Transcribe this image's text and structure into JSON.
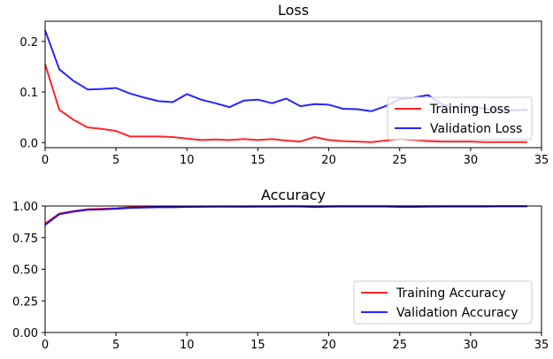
{
  "chart_data": [
    {
      "type": "line",
      "title": "Loss",
      "xlabel": "",
      "ylabel": "",
      "xlim": [
        0,
        35
      ],
      "ylim": [
        -0.01,
        0.24
      ],
      "xticks": [
        0,
        5,
        10,
        15,
        20,
        25,
        30,
        35
      ],
      "xtick_labels": [
        "0",
        "5",
        "10",
        "15",
        "20",
        "25",
        "30",
        "35"
      ],
      "yticks": [
        0.0,
        0.1,
        0.2
      ],
      "ytick_labels": [
        "0.0",
        "0.1",
        "0.2"
      ],
      "grid": false,
      "legend_position": "center-right",
      "x": [
        0,
        1,
        2,
        3,
        4,
        5,
        6,
        7,
        8,
        9,
        10,
        11,
        12,
        13,
        14,
        15,
        16,
        17,
        18,
        19,
        20,
        21,
        22,
        23,
        24,
        25,
        26,
        27,
        28,
        29,
        30,
        31,
        32,
        33,
        34
      ],
      "series": [
        {
          "name": "Training Loss",
          "color": "#ff0000",
          "values": [
            0.155,
            0.065,
            0.045,
            0.03,
            0.027,
            0.023,
            0.012,
            0.012,
            0.012,
            0.011,
            0.008,
            0.005,
            0.006,
            0.005,
            0.007,
            0.005,
            0.007,
            0.004,
            0.002,
            0.011,
            0.005,
            0.003,
            0.002,
            0.001,
            0.004,
            0.007,
            0.005,
            0.003,
            0.002,
            0.002,
            0.002,
            0.001,
            0.001,
            0.001,
            0.001
          ]
        },
        {
          "name": "Validation Loss",
          "color": "#0000ff",
          "values": [
            0.222,
            0.145,
            0.122,
            0.105,
            0.106,
            0.108,
            0.097,
            0.089,
            0.082,
            0.08,
            0.096,
            0.085,
            0.078,
            0.07,
            0.083,
            0.085,
            0.078,
            0.087,
            0.072,
            0.076,
            0.075,
            0.067,
            0.066,
            0.062,
            0.072,
            0.086,
            0.089,
            0.094,
            0.075,
            0.07,
            0.072,
            0.067,
            0.064,
            0.064,
            0.065
          ]
        }
      ]
    },
    {
      "type": "line",
      "title": "Accuracy",
      "xlabel": "",
      "ylabel": "",
      "xlim": [
        0,
        35
      ],
      "ylim": [
        0.0,
        1.0
      ],
      "xticks": [
        0,
        5,
        10,
        15,
        20,
        25,
        30,
        35
      ],
      "xtick_labels": [
        "0",
        "5",
        "10",
        "15",
        "20",
        "25",
        "30",
        "35"
      ],
      "yticks": [
        0.0,
        0.25,
        0.5,
        0.75,
        1.0
      ],
      "ytick_labels": [
        "0.00",
        "0.25",
        "0.50",
        "0.75",
        "1.00"
      ],
      "grid": false,
      "legend_position": "lower-right",
      "x": [
        0,
        1,
        2,
        3,
        4,
        5,
        6,
        7,
        8,
        9,
        10,
        11,
        12,
        13,
        14,
        15,
        16,
        17,
        18,
        19,
        20,
        21,
        22,
        23,
        24,
        25,
        26,
        27,
        28,
        29,
        30,
        31,
        32,
        33,
        34
      ],
      "series": [
        {
          "name": "Training Accuracy",
          "color": "#ff0000",
          "values": [
            0.86,
            0.94,
            0.96,
            0.975,
            0.978,
            0.982,
            0.99,
            0.992,
            0.993,
            0.993,
            0.995,
            0.996,
            0.997,
            0.997,
            0.997,
            0.998,
            0.998,
            0.999,
            0.999,
            0.997,
            0.998,
            0.999,
            0.999,
            0.999,
            0.999,
            0.998,
            0.998,
            0.999,
            0.999,
            0.999,
            0.999,
            0.999,
            0.999,
            0.999,
            0.999
          ]
        },
        {
          "name": "Validation Accuracy",
          "color": "#0000ff",
          "values": [
            0.85,
            0.935,
            0.955,
            0.97,
            0.973,
            0.978,
            0.985,
            0.988,
            0.99,
            0.99,
            0.993,
            0.994,
            0.995,
            0.995,
            0.994,
            0.995,
            0.995,
            0.996,
            0.996,
            0.992,
            0.995,
            0.996,
            0.996,
            0.996,
            0.996,
            0.993,
            0.993,
            0.995,
            0.996,
            0.996,
            0.996,
            0.996,
            0.997,
            0.997,
            0.997
          ]
        }
      ]
    }
  ]
}
